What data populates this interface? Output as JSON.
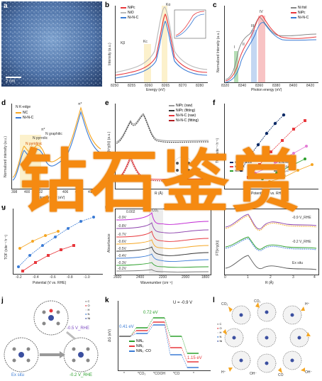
{
  "panel_labels": [
    "a",
    "b",
    "c",
    "d",
    "e",
    "f",
    "g",
    "h",
    "i",
    "j",
    "k",
    "l"
  ],
  "panel_a": {
    "scalebar": "2 nm"
  },
  "panel_b": {
    "xlabel": "Energy (eV)",
    "ylabel": "Intensity (a.u.)",
    "xticks": [
      "8250",
      "8255",
      "8260",
      "8265",
      "8270",
      "8280"
    ],
    "legend": [
      "NiPc",
      "NiO",
      "Ni-N-C"
    ],
    "annotations": [
      "Kβ",
      "Kc",
      "Kα"
    ]
  },
  "panel_c": {
    "xlabel": "Photon energy (eV)",
    "ylabel": "Normalized Intensity (a.u.)",
    "xticks": [
      "8320",
      "8340",
      "8360",
      "8380",
      "8400",
      "8420"
    ],
    "legend": [
      "Ni foil",
      "NiPc",
      "Ni-N-C"
    ],
    "annotations": [
      "I",
      "II",
      "III",
      "IV"
    ]
  },
  "panel_d": {
    "title": "N K-edge",
    "xlabel": "Photon energy (eV)",
    "ylabel": "Normalized intensity (a.u.)",
    "xticks": [
      "398",
      "400",
      "402",
      "404",
      "406",
      "408",
      "410"
    ],
    "legend": [
      "NC",
      "Ni-N-C"
    ],
    "annotations": [
      "π*",
      "π*",
      "N pyridinic",
      "N pyrrolic",
      "N graphitic"
    ]
  },
  "panel_e": {
    "xlabel": "R (Å)",
    "ylabel": "FT|k³χ(k)| (a.u.)",
    "legend": [
      "NiPc (raw)",
      "NiPc (fitting)",
      "Ni-N-C (raw)",
      "Ni-N-C (fitting)"
    ]
  },
  "panel_f": {
    "xlabel": "Potential (V vs. RHE)",
    "ylabel": "TOF (site⁻¹ h⁻¹)",
    "legend": [
      "Ni-CNC-1000",
      "Ni-N₄-C",
      "Ni-N-C",
      "A-Ni-NSG",
      "NiFe-DASC",
      "Ni-N₃-C",
      "CoPc"
    ]
  },
  "panel_g": {
    "xlabel": "Potential (V vs. RHE)",
    "ylabel": "TOF (site⁻¹ h⁻¹)",
    "xticks": [
      "-0.2",
      "-0.4",
      "-0.6",
      "-0.8",
      "-1.0"
    ]
  },
  "panel_h": {
    "xlabel": "Wavenumber (cm⁻¹)",
    "ylabel": "Absorbance",
    "xticks": [
      "2600",
      "2400",
      "2200",
      "2000",
      "1800"
    ],
    "traces": [
      "-0.9V",
      "-0.8V",
      "-0.7V",
      "-0.6V",
      "-0.5V",
      "-0.4V",
      "-0.3V",
      "-0.2V"
    ],
    "annotations": [
      "CO₂",
      "0.002"
    ]
  },
  "panel_i": {
    "xlabel": "R (Å)",
    "ylabel": "FT|k³χ(k)|",
    "xticks": [
      "0",
      "1",
      "2",
      "3",
      "4"
    ],
    "traces": [
      "-0.9 V_RHE",
      "-0.2 V_RHE",
      "Ex situ"
    ]
  },
  "panel_j": {
    "labels": [
      "-0.5 V_RHE",
      "Ex situ",
      "-0.2 V_RHE"
    ],
    "legend": [
      "C",
      "O",
      "H",
      "N",
      "Ni"
    ]
  },
  "panel_k": {
    "ylabel": "ΔG (eV)",
    "condition": "U = -0.9 V",
    "xticks": [
      "*",
      "*CO₂",
      "*COOH",
      "*CO",
      "*"
    ],
    "legend": [
      "NiN₄",
      "NiN₃",
      "NiN₃ -CO"
    ],
    "annotations": [
      "0.41 eV",
      "0.72 eV",
      "1.15 eV"
    ],
    "yticks": [
      "0.5",
      "0.0",
      "-0.5",
      "-1.0",
      "-1.5",
      "-2.0",
      "-2.5",
      "-3.0"
    ]
  },
  "panel_l": {
    "labels": [
      "CO₂",
      "CO₂",
      "H⁺",
      "H⁺",
      "OH⁻",
      "CO",
      "OH⁻"
    ],
    "legend": [
      "C",
      "O",
      "H",
      "N",
      "Ni"
    ]
  },
  "overlay_text": "钻石鉴赏",
  "colors": {
    "overlay": "#f58a11",
    "red": "#e8383d",
    "blue": "#3a7bd5",
    "green": "#2ca02c",
    "orange": "#f5a623",
    "gray": "#8c8c8c",
    "navy": "#0a2a66"
  }
}
